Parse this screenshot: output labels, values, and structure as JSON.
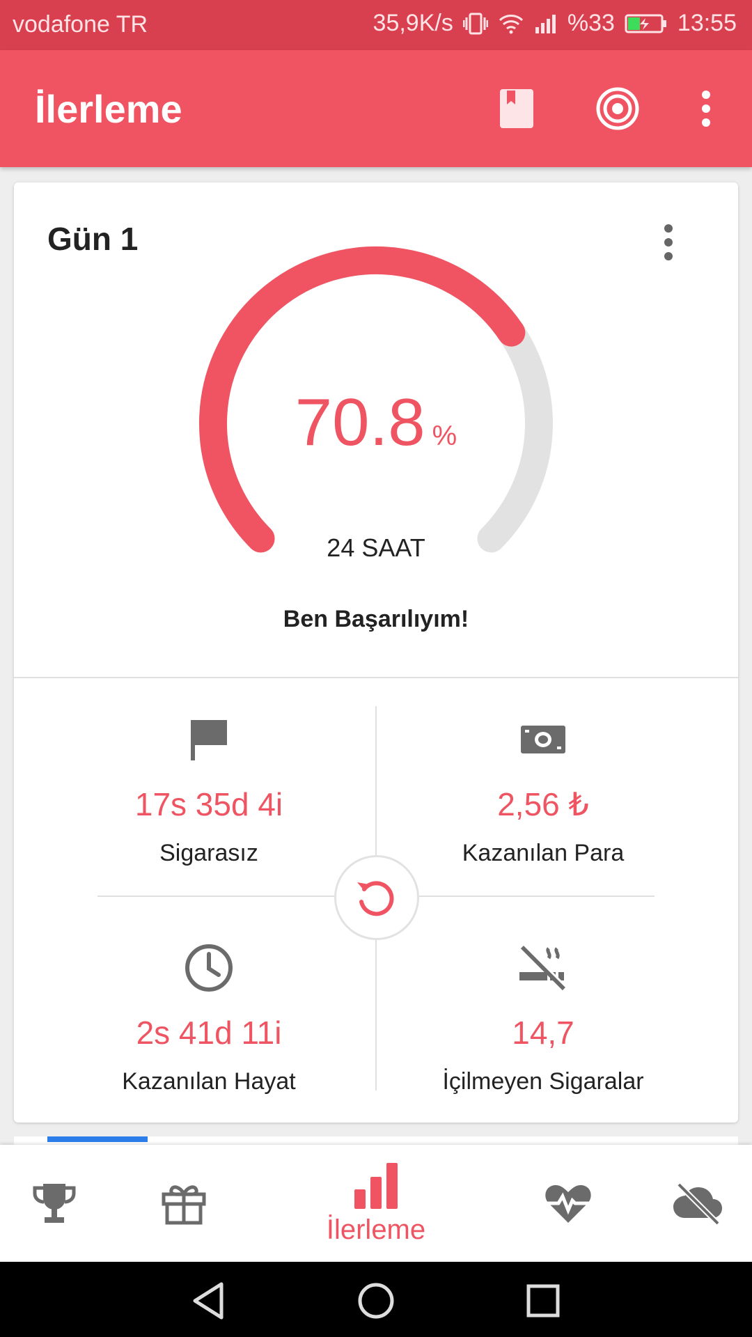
{
  "status_bar": {
    "carrier": "vodafone TR",
    "speed": "35,9K/s",
    "battery": "%33",
    "time": "13:55"
  },
  "app_bar": {
    "title": "İlerleme",
    "icons": [
      "bookmark-icon",
      "target-icon",
      "more-vert-icon"
    ]
  },
  "progress_card": {
    "day_title": "Gün 1",
    "percent": "70.8",
    "percent_unit": "%",
    "percent_value": 70.8,
    "duration_label": "24 SAAT",
    "motto": "Ben Başarılıyım!"
  },
  "stats": [
    {
      "icon": "flag-icon",
      "value": "17s 35d 4i",
      "label": "Sigarasız"
    },
    {
      "icon": "money-icon",
      "value": "2,56 ₺",
      "label": "Kazanılan Para"
    },
    {
      "icon": "clock-icon",
      "value": "2s 41d 11i",
      "label": "Kazanılan Hayat"
    },
    {
      "icon": "no-smoking-icon",
      "value": "14,7",
      "label": "İçilmeyen Sigaralar"
    }
  ],
  "bottom_nav": {
    "items": [
      {
        "icon": "trophy-icon",
        "label": ""
      },
      {
        "icon": "gift-icon",
        "label": ""
      },
      {
        "icon": "bar-chart-icon",
        "label": "İlerleme",
        "active": true
      },
      {
        "icon": "heart-pulse-icon",
        "label": ""
      },
      {
        "icon": "cloud-off-icon",
        "label": ""
      }
    ]
  },
  "colors": {
    "accent": "#f05462",
    "status_bar": "#d9404f",
    "gauge_track": "#e2e2e2",
    "icon_gray": "#6b6b6b"
  }
}
